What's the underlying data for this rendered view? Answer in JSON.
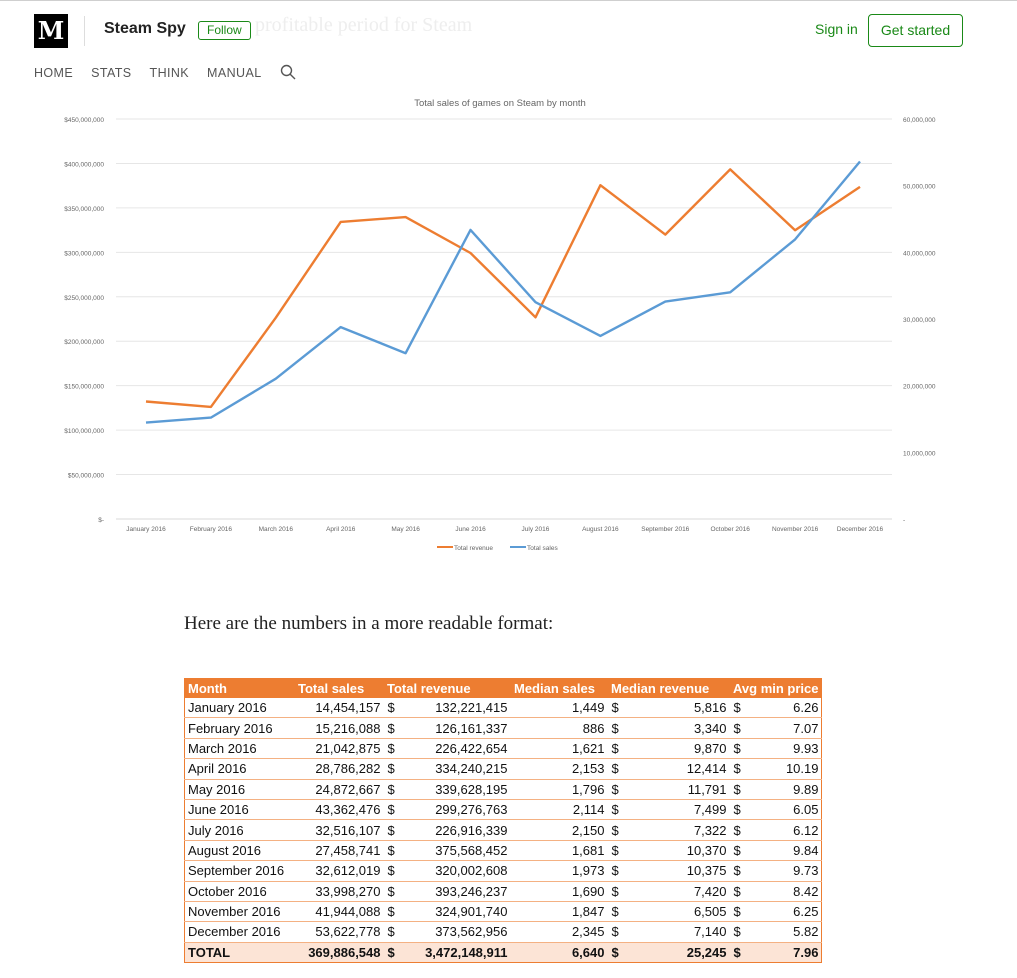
{
  "header": {
    "logo": "M",
    "publication": "Steam Spy",
    "follow_label": "Follow",
    "ghost_text": "profitable period for Steam",
    "sign_in": "Sign in",
    "get_started": "Get started",
    "accent_color": "#1a8917"
  },
  "nav": {
    "items": [
      "HOME",
      "STATS",
      "THINK",
      "MANUAL"
    ],
    "search_icon": "search-icon"
  },
  "chart_data": {
    "type": "line",
    "title": "Total sales of games on Steam by month",
    "categories": [
      "January 2016",
      "February 2016",
      "March 2016",
      "April 2016",
      "May 2016",
      "June 2016",
      "July 2016",
      "August 2016",
      "September 2016",
      "October 2016",
      "November 2016",
      "December 2016"
    ],
    "series": [
      {
        "name": "Total revenue",
        "axis": "left",
        "color": "#ed7d31",
        "values": [
          132221415,
          126161337,
          226422654,
          334240215,
          339628195,
          299276763,
          226916339,
          375568452,
          320002608,
          393246237,
          324901740,
          373562956
        ]
      },
      {
        "name": "Total sales",
        "axis": "right",
        "color": "#5b9bd5",
        "values": [
          14454157,
          15216088,
          21042875,
          28786282,
          24872667,
          43362476,
          32516107,
          27458741,
          32612019,
          33998270,
          41944088,
          53622778
        ]
      }
    ],
    "y_left": {
      "min": 0,
      "max": 450000000,
      "ticks": [
        "$-",
        "$50,000,000",
        "$100,000,000",
        "$150,000,000",
        "$200,000,000",
        "$250,000,000",
        "$300,000,000",
        "$350,000,000",
        "$400,000,000",
        "$450,000,000"
      ]
    },
    "y_right": {
      "min": 0,
      "max": 60000000,
      "ticks": [
        "-",
        "10,000,000",
        "20,000,000",
        "30,000,000",
        "40,000,000",
        "50,000,000",
        "60,000,000"
      ]
    },
    "grid": true,
    "legend": "bottom"
  },
  "article": {
    "paragraph": "Here are the numbers in a more readable format:"
  },
  "table": {
    "headers": [
      "Month",
      "Total sales",
      "Total revenue",
      "Median sales",
      "Median revenue",
      "Avg min price"
    ],
    "currency": "$",
    "rows": [
      [
        "January 2016",
        "14,454,157",
        "132,221,415",
        "1,449",
        "5,816",
        "6.26"
      ],
      [
        "February 2016",
        "15,216,088",
        "126,161,337",
        "886",
        "3,340",
        "7.07"
      ],
      [
        "March 2016",
        "21,042,875",
        "226,422,654",
        "1,621",
        "9,870",
        "9.93"
      ],
      [
        "April 2016",
        "28,786,282",
        "334,240,215",
        "2,153",
        "12,414",
        "10.19"
      ],
      [
        "May 2016",
        "24,872,667",
        "339,628,195",
        "1,796",
        "11,791",
        "9.89"
      ],
      [
        "June 2016",
        "43,362,476",
        "299,276,763",
        "2,114",
        "7,499",
        "6.05"
      ],
      [
        "July 2016",
        "32,516,107",
        "226,916,339",
        "2,150",
        "7,322",
        "6.12"
      ],
      [
        "August 2016",
        "27,458,741",
        "375,568,452",
        "1,681",
        "10,370",
        "9.84"
      ],
      [
        "September 2016",
        "32,612,019",
        "320,002,608",
        "1,973",
        "10,375",
        "9.73"
      ],
      [
        "October 2016",
        "33,998,270",
        "393,246,237",
        "1,690",
        "7,420",
        "8.42"
      ],
      [
        "November 2016",
        "41,944,088",
        "324,901,740",
        "1,847",
        "6,505",
        "6.25"
      ],
      [
        "December 2016",
        "53,622,778",
        "373,562,956",
        "2,345",
        "7,140",
        "5.82"
      ]
    ],
    "total": [
      "TOTAL",
      "369,886,548",
      "3,472,148,911",
      "6,640",
      "25,245",
      "7.96"
    ]
  }
}
